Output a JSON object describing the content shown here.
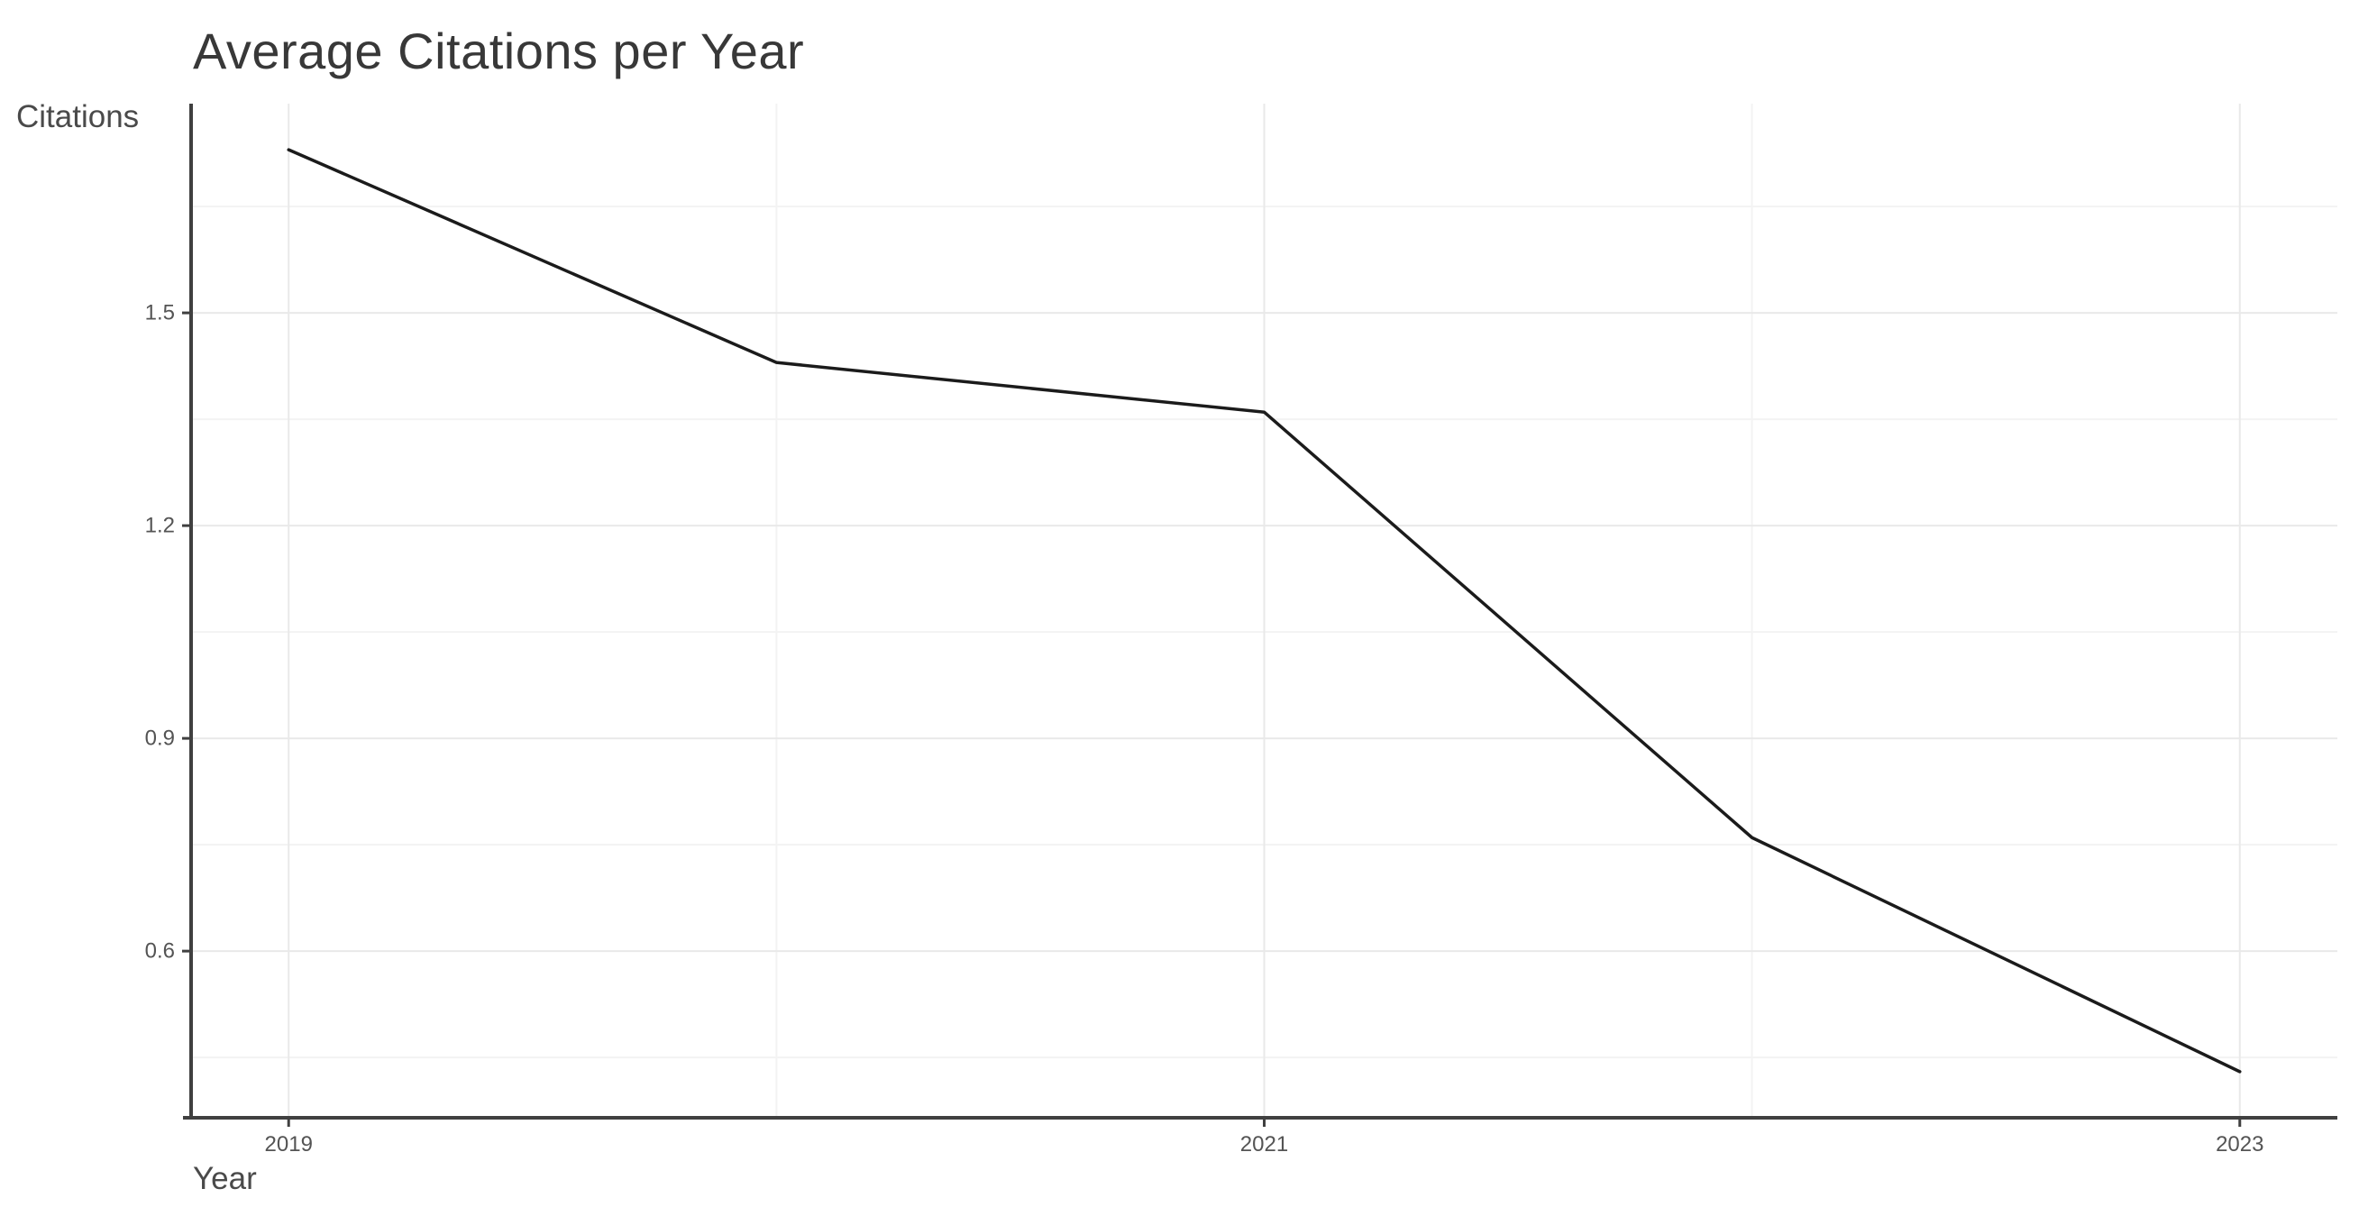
{
  "chart_data": {
    "type": "line",
    "title": "Average Citations per Year",
    "xlabel": "Year",
    "ylabel": "Citations",
    "x": [
      2019,
      2020,
      2021,
      2022,
      2023
    ],
    "values": [
      1.73,
      1.43,
      1.36,
      0.76,
      0.43
    ],
    "series_name": "Average citations per year",
    "xlim": [
      2018.8,
      2023.2
    ],
    "ylim": [
      0.365,
      1.795
    ],
    "x_ticks": [
      {
        "value": 2019,
        "label": "2019"
      },
      {
        "value": 2021,
        "label": "2021"
      },
      {
        "value": 2023,
        "label": "2023"
      }
    ],
    "x_minor_ticks": [
      2020,
      2022
    ],
    "y_ticks": [
      {
        "value": 0.6,
        "label": "0.6"
      },
      {
        "value": 0.9,
        "label": "0.9"
      },
      {
        "value": 1.2,
        "label": "1.2"
      },
      {
        "value": 1.5,
        "label": "1.5"
      }
    ],
    "y_minor_ticks": [
      0.45,
      0.75,
      1.05,
      1.35,
      1.65
    ],
    "grid": true,
    "legend": false,
    "colors": {
      "background": "#ffffff",
      "line": "#1b1b1b",
      "axis": "#404040",
      "grid_major": "#e9e9e9",
      "grid_minor": "#f3f3f3",
      "title": "#383838",
      "axis_label": "#4a4a4a",
      "tick_label": "#545454"
    }
  }
}
